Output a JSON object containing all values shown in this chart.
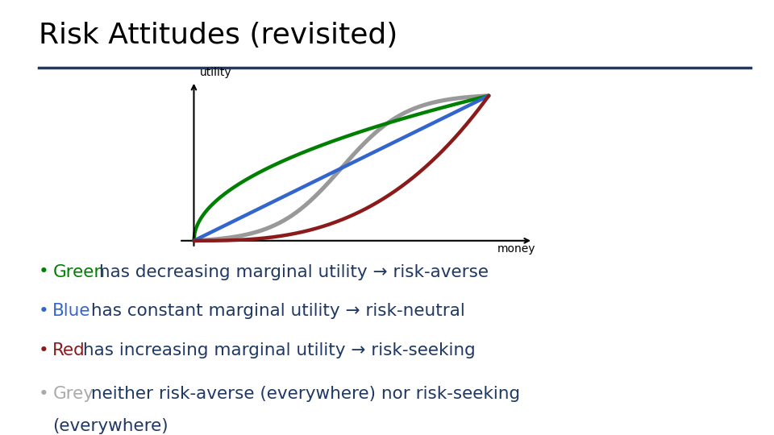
{
  "title": "Risk Attitudes (revisited)",
  "title_color": "#000000",
  "title_fontsize": 26,
  "rule_color": "#1F3864",
  "background_color": "#ffffff",
  "xlabel": "money",
  "ylabel": "utility",
  "axis_label_fontsize": 10,
  "curves": {
    "green": {
      "color": "#008000"
    },
    "blue": {
      "color": "#3366CC"
    },
    "red": {
      "color": "#8B1A1A"
    },
    "grey": {
      "color": "#999999"
    }
  },
  "bullet_points": [
    {
      "bullet_color": "#008000",
      "bullet_word": "Green",
      "rest_text": " has decreasing marginal utility → risk-averse",
      "rest_color": "#1F3864"
    },
    {
      "bullet_color": "#3366CC",
      "bullet_word": "Blue",
      "rest_text": " has constant marginal utility → risk-neutral",
      "rest_color": "#1F3864"
    },
    {
      "bullet_color": "#8B1A1A",
      "bullet_word": "Red",
      "rest_text": " has increasing marginal utility → risk-seeking",
      "rest_color": "#1F3864"
    },
    {
      "bullet_color": "#aaaaaa",
      "bullet_word": "Grey",
      "rest_text": " neither risk-averse (everywhere) nor risk-seeking",
      "rest_text2": "(everywhere)",
      "rest_color": "#1F3864"
    }
  ],
  "bullet_fontsize": 15.5,
  "line_width": 3.2
}
